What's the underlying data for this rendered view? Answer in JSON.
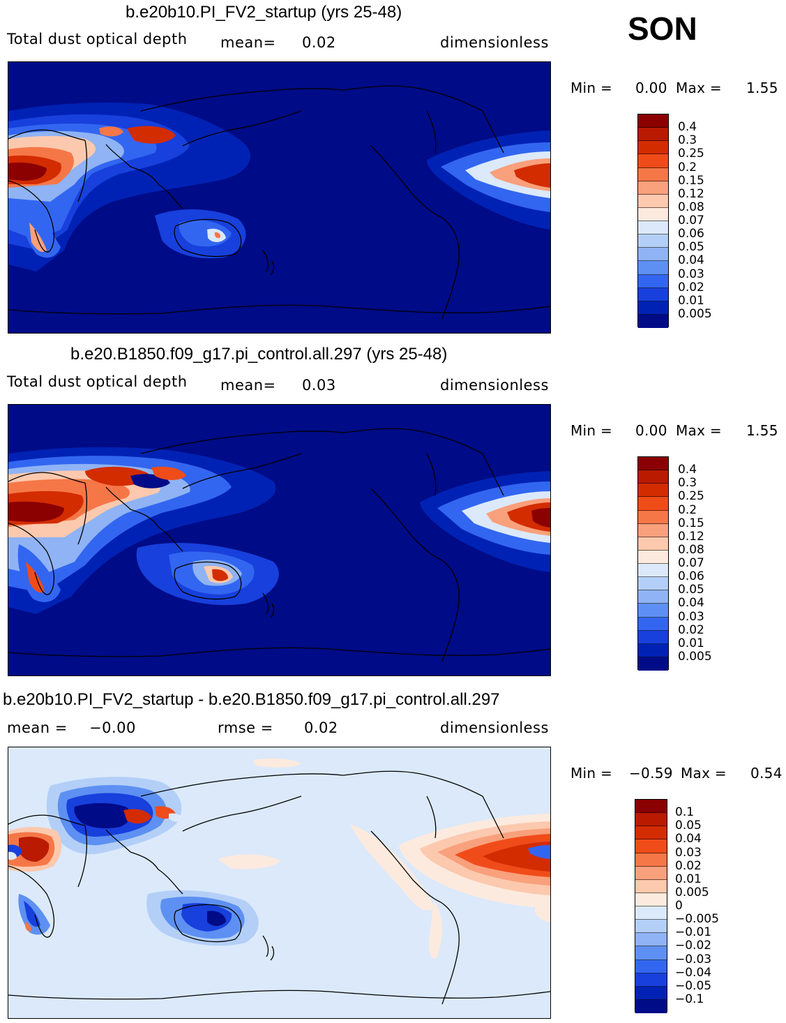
{
  "season": "SON",
  "panels": [
    {
      "title": "b.e20b10.PI_FV2_startup (yrs 25-48)",
      "variable": "Total dust optical depth",
      "mean_label": "mean=",
      "mean_value": "0.02",
      "units": "dimensionless",
      "min_label": "Min =",
      "min_value": "0.00",
      "max_label": "Max =",
      "max_value": "1.55",
      "colorbar": {
        "labels": [
          "0.4",
          "0.3",
          "0.25",
          "0.2",
          "0.15",
          "0.12",
          "0.08",
          "0.07",
          "0.06",
          "0.05",
          "0.04",
          "0.03",
          "0.02",
          "0.01",
          "0.005"
        ],
        "colors": [
          "#8b0000",
          "#b91a00",
          "#d32c00",
          "#f04c1a",
          "#f57748",
          "#f9a07c",
          "#fcc9ae",
          "#fdeade",
          "#dbe9fb",
          "#b3cff7",
          "#8fb3f4",
          "#5d90f2",
          "#3366f0",
          "#1740dc",
          "#0022b4",
          "#000b87"
        ]
      }
    },
    {
      "title": "b.e20.B1850.f09_g17.pi_control.all.297 (yrs 25-48)",
      "variable": "Total dust optical depth",
      "mean_label": "mean=",
      "mean_value": "0.03",
      "units": "dimensionless",
      "min_label": "Min =",
      "min_value": "0.00",
      "max_label": "Max =",
      "max_value": "1.55",
      "colorbar": {
        "labels": [
          "0.4",
          "0.3",
          "0.25",
          "0.2",
          "0.15",
          "0.12",
          "0.08",
          "0.07",
          "0.06",
          "0.05",
          "0.04",
          "0.03",
          "0.02",
          "0.01",
          "0.005"
        ],
        "colors": [
          "#8b0000",
          "#b91a00",
          "#d32c00",
          "#f04c1a",
          "#f57748",
          "#f9a07c",
          "#fcc9ae",
          "#fdeade",
          "#dbe9fb",
          "#b3cff7",
          "#8fb3f4",
          "#5d90f2",
          "#3366f0",
          "#1740dc",
          "#0022b4",
          "#000b87"
        ]
      }
    },
    {
      "title": "b.e20b10.PI_FV2_startup - b.e20.B1850.f09_g17.pi_control.all.297",
      "mean_label": "mean =",
      "mean_value": "−0.00",
      "rmse_label": "rmse =",
      "rmse_value": "0.02",
      "units": "dimensionless",
      "min_label": "Min =",
      "min_value": "−0.59",
      "max_label": "Max =",
      "max_value": "0.54",
      "colorbar": {
        "labels": [
          "0.1",
          "0.05",
          "0.04",
          "0.03",
          "0.02",
          "0.01",
          "0.005",
          "0",
          "−0.005",
          "−0.01",
          "−0.02",
          "−0.03",
          "−0.04",
          "−0.05",
          "−0.1"
        ],
        "colors": [
          "#8b0000",
          "#b91a00",
          "#d32c00",
          "#f04c1a",
          "#f57748",
          "#f9a07c",
          "#fcc9ae",
          "#fdeade",
          "#dbe9fb",
          "#b3cff7",
          "#8fb3f4",
          "#5d90f2",
          "#3366f0",
          "#1740dc",
          "#0022b4",
          "#000b87"
        ]
      }
    }
  ]
}
